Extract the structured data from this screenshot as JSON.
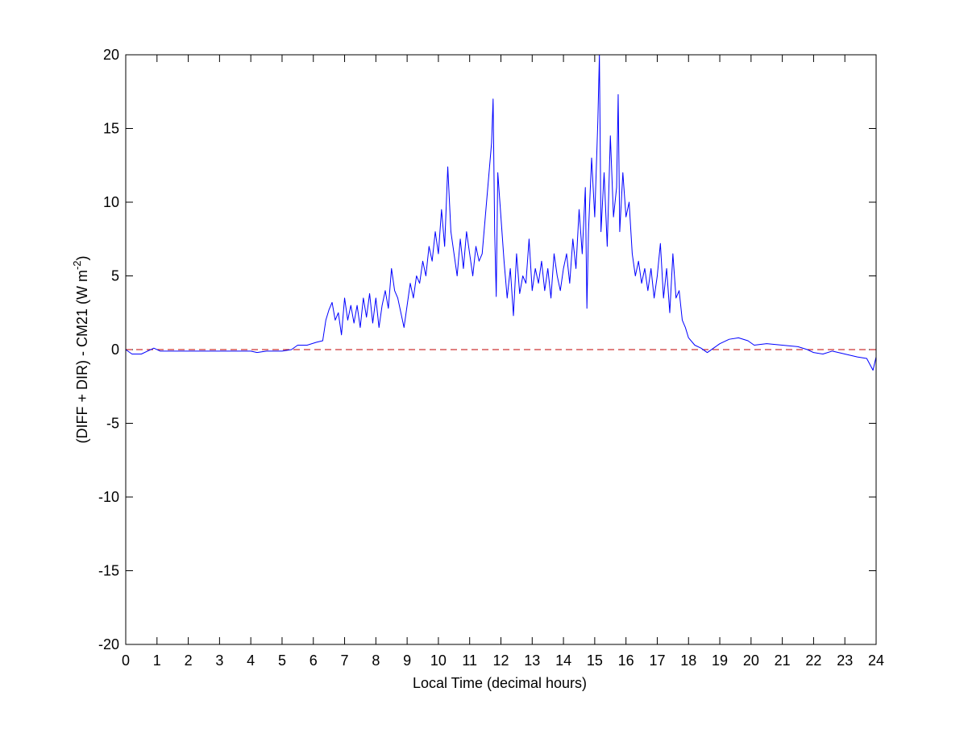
{
  "chart_data": {
    "type": "line",
    "xlabel": "Local Time (decimal hours)",
    "ylabel": {
      "main": "(DIFF + DIR) - CM21 (W m",
      "superscript": "-2",
      "end": ")"
    },
    "xlim": [
      0,
      24
    ],
    "ylim": [
      -20,
      20
    ],
    "xticks": [
      0,
      1,
      2,
      3,
      4,
      5,
      6,
      7,
      8,
      9,
      10,
      11,
      12,
      13,
      14,
      15,
      16,
      17,
      18,
      19,
      20,
      21,
      22,
      23,
      24
    ],
    "yticks": [
      -20,
      -15,
      -10,
      -5,
      0,
      5,
      10,
      15,
      20
    ],
    "grid": false,
    "reference_line": {
      "y": 0,
      "color": "#c00000"
    },
    "x": [
      0,
      0.2,
      0.5,
      0.7,
      0.9,
      1.1,
      1.5,
      2,
      3,
      4,
      4.2,
      4.5,
      5,
      5.3,
      5.5,
      5.8,
      6.1,
      6.3,
      6.4,
      6.5,
      6.6,
      6.7,
      6.8,
      6.9,
      7.0,
      7.1,
      7.2,
      7.3,
      7.4,
      7.5,
      7.6,
      7.7,
      7.8,
      7.9,
      8.0,
      8.1,
      8.2,
      8.3,
      8.4,
      8.5,
      8.6,
      8.7,
      8.8,
      8.9,
      9.0,
      9.1,
      9.2,
      9.3,
      9.4,
      9.5,
      9.6,
      9.7,
      9.8,
      9.9,
      10.0,
      10.1,
      10.2,
      10.3,
      10.4,
      10.5,
      10.6,
      10.7,
      10.8,
      10.9,
      11.0,
      11.1,
      11.2,
      11.3,
      11.4,
      11.5,
      11.6,
      11.7,
      11.75,
      11.8,
      11.85,
      11.9,
      12.0,
      12.1,
      12.2,
      12.3,
      12.4,
      12.5,
      12.6,
      12.7,
      12.8,
      12.9,
      13.0,
      13.1,
      13.2,
      13.3,
      13.4,
      13.5,
      13.6,
      13.7,
      13.8,
      13.9,
      14.0,
      14.1,
      14.2,
      14.3,
      14.4,
      14.5,
      14.6,
      14.7,
      14.75,
      14.8,
      14.9,
      15.0,
      15.1,
      15.15,
      15.2,
      15.3,
      15.4,
      15.5,
      15.6,
      15.7,
      15.75,
      15.8,
      15.9,
      16.0,
      16.1,
      16.2,
      16.3,
      16.4,
      16.5,
      16.6,
      16.7,
      16.8,
      16.9,
      17.0,
      17.1,
      17.2,
      17.3,
      17.4,
      17.5,
      17.6,
      17.7,
      17.8,
      17.9,
      18.0,
      18.2,
      18.4,
      18.6,
      18.8,
      19.0,
      19.3,
      19.6,
      19.9,
      20.1,
      20.5,
      21.0,
      21.5,
      21.8,
      22.0,
      22.3,
      22.6,
      23.0,
      23.4,
      23.7,
      23.9,
      24.0
    ],
    "series": [
      {
        "color": "#0000ff",
        "values": [
          0,
          -0.3,
          -0.3,
          -0.1,
          0.1,
          -0.1,
          -0.1,
          -0.1,
          -0.1,
          -0.1,
          -0.2,
          -0.1,
          -0.1,
          0,
          0.3,
          0.3,
          0.5,
          0.6,
          2.0,
          2.7,
          3.2,
          2.0,
          2.5,
          1.0,
          3.5,
          2.0,
          3.0,
          1.8,
          3.0,
          1.5,
          3.5,
          2.2,
          3.8,
          1.8,
          3.5,
          1.5,
          3.0,
          4.0,
          2.8,
          5.5,
          4.0,
          3.5,
          2.5,
          1.5,
          3.0,
          4.5,
          3.5,
          5.0,
          4.5,
          6.0,
          5.0,
          7.0,
          6.0,
          8.0,
          6.5,
          9.5,
          7.0,
          12.4,
          8.0,
          6.5,
          5.0,
          7.5,
          5.5,
          8.0,
          6.5,
          5.0,
          7.0,
          6.0,
          6.5,
          9.0,
          11.5,
          14.0,
          17.0,
          8.0,
          3.6,
          12.0,
          9.0,
          6.0,
          3.5,
          5.5,
          2.3,
          6.5,
          3.8,
          5.0,
          4.5,
          7.5,
          4.0,
          5.5,
          4.5,
          6.0,
          4.0,
          5.5,
          3.5,
          6.5,
          5.0,
          4.0,
          5.5,
          6.5,
          4.5,
          7.5,
          5.5,
          9.5,
          6.5,
          11.0,
          2.8,
          8.0,
          13.0,
          9.0,
          15.5,
          20,
          8.0,
          12.0,
          7.0,
          14.5,
          9.0,
          11.0,
          17.3,
          8.0,
          12.0,
          9.0,
          10.0,
          6.5,
          5.0,
          6.0,
          4.5,
          5.5,
          4.0,
          5.5,
          3.5,
          5.0,
          7.2,
          3.5,
          5.5,
          2.5,
          6.5,
          3.5,
          4.0,
          2.0,
          1.5,
          0.8,
          0.3,
          0.1,
          -0.2,
          0.1,
          0.4,
          0.7,
          0.8,
          0.6,
          0.3,
          0.4,
          0.3,
          0.2,
          0,
          -0.2,
          -0.3,
          -0.1,
          -0.3,
          -0.5,
          -0.6,
          -1.4,
          -0.5
        ]
      }
    ]
  }
}
